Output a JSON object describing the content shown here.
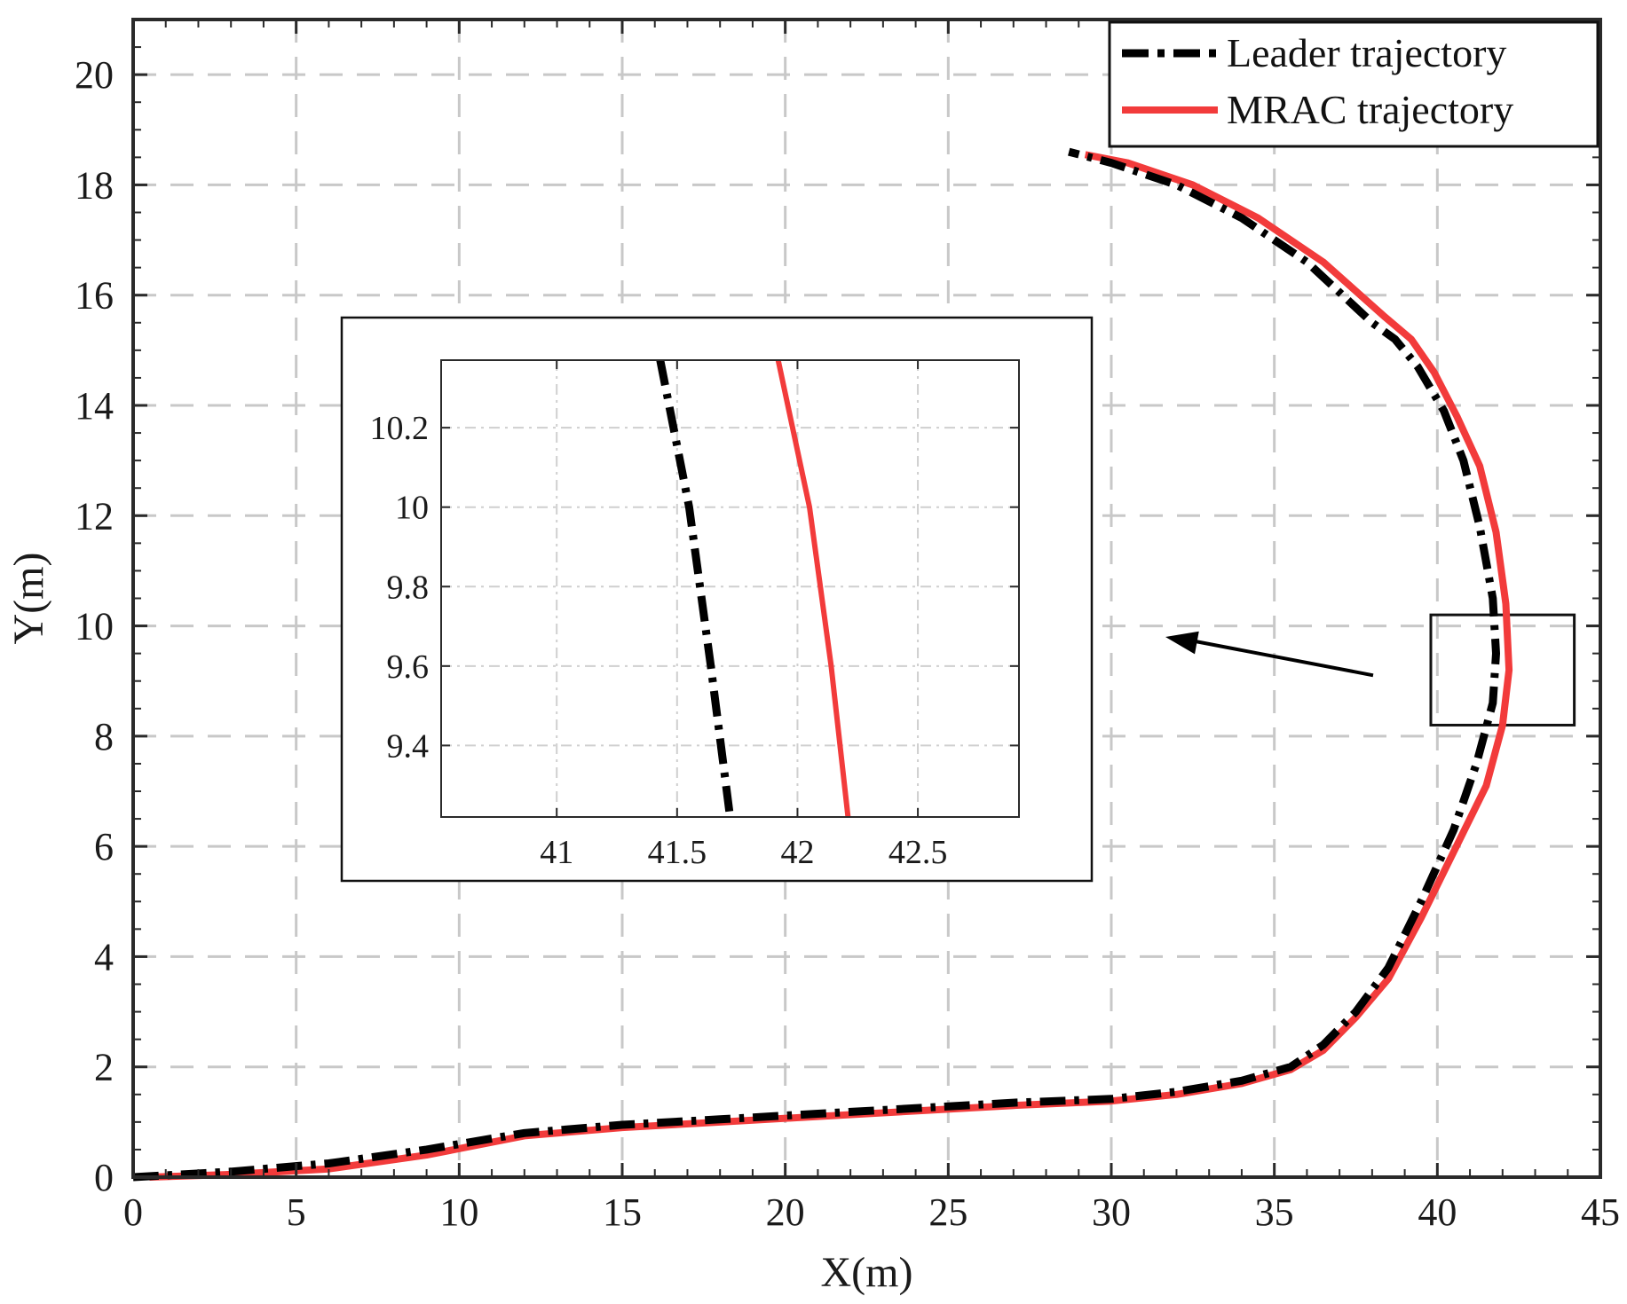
{
  "chart_data": {
    "type": "line",
    "xlabel": "X(m)",
    "ylabel": "Y(m)",
    "xlim": [
      0,
      45
    ],
    "ylim": [
      0,
      21
    ],
    "xticks": [
      0,
      5,
      10,
      15,
      20,
      25,
      30,
      35,
      40,
      45
    ],
    "yticks": [
      0,
      2,
      4,
      6,
      8,
      10,
      12,
      14,
      16,
      18,
      20
    ],
    "grid": true,
    "legend_position": "top-right",
    "series": [
      {
        "name": "Leader trajectory",
        "color": "#000000",
        "style": "dash-dot",
        "x": [
          0,
          3,
          6,
          9,
          12,
          15,
          18,
          21,
          24,
          27,
          30,
          32,
          34,
          35.5,
          36.5,
          37.5,
          38.5,
          39.5,
          40.5,
          41.2,
          41.7,
          41.8,
          41.7,
          41.3,
          40.8,
          40.2,
          39.4,
          38.7,
          38.0,
          36.0,
          34.0,
          32.0,
          30.0,
          28.7
        ],
        "y": [
          0,
          0.1,
          0.25,
          0.5,
          0.8,
          0.95,
          1.05,
          1.15,
          1.25,
          1.35,
          1.42,
          1.55,
          1.75,
          2.0,
          2.4,
          3.0,
          3.8,
          5.0,
          6.3,
          7.5,
          8.6,
          9.5,
          10.5,
          11.8,
          13.0,
          13.9,
          14.7,
          15.2,
          15.5,
          16.6,
          17.4,
          18.0,
          18.4,
          18.6
        ]
      },
      {
        "name": "MRAC trajectory",
        "color": "#f23b3b",
        "style": "solid",
        "x": [
          0.5,
          3,
          6,
          9,
          12,
          15,
          18,
          21,
          24,
          27,
          30,
          32,
          34,
          35.5,
          36.5,
          37.5,
          38.5,
          39.5,
          40.5,
          41.5,
          42.0,
          42.2,
          42.1,
          41.8,
          41.3,
          40.6,
          39.9,
          39.2,
          38.4,
          36.5,
          34.5,
          32.5,
          30.5,
          29.2
        ],
        "y": [
          0,
          0.05,
          0.15,
          0.4,
          0.75,
          0.9,
          1.0,
          1.1,
          1.2,
          1.3,
          1.38,
          1.5,
          1.7,
          1.95,
          2.3,
          2.9,
          3.6,
          4.7,
          5.9,
          7.1,
          8.2,
          9.2,
          10.4,
          11.7,
          12.9,
          13.8,
          14.6,
          15.2,
          15.6,
          16.6,
          17.4,
          18.0,
          18.4,
          18.55
        ]
      }
    ],
    "zoom_box": {
      "xlim": [
        39.8,
        44.2
      ],
      "ylim": [
        8.2,
        10.2
      ]
    },
    "inset": {
      "xlim": [
        40.52,
        42.92
      ],
      "ylim": [
        9.22,
        10.37
      ],
      "xticks": [
        41,
        41.5,
        42,
        42.5
      ],
      "yticks": [
        9.4,
        9.6,
        9.8,
        10,
        10.2
      ],
      "xtick_labels": [
        "41",
        "41.5",
        "42",
        "42.5"
      ],
      "ytick_labels": [
        "9.4",
        "9.6",
        "9.8",
        "10",
        "10.2"
      ],
      "series": [
        {
          "name": "Leader trajectory",
          "x": [
            41.43,
            41.55,
            41.64,
            41.72
          ],
          "y": [
            10.37,
            10.0,
            9.6,
            9.22
          ]
        },
        {
          "name": "MRAC trajectory",
          "x": [
            41.92,
            42.05,
            42.14,
            42.21
          ],
          "y": [
            10.37,
            10.0,
            9.6,
            9.22
          ]
        }
      ]
    }
  }
}
